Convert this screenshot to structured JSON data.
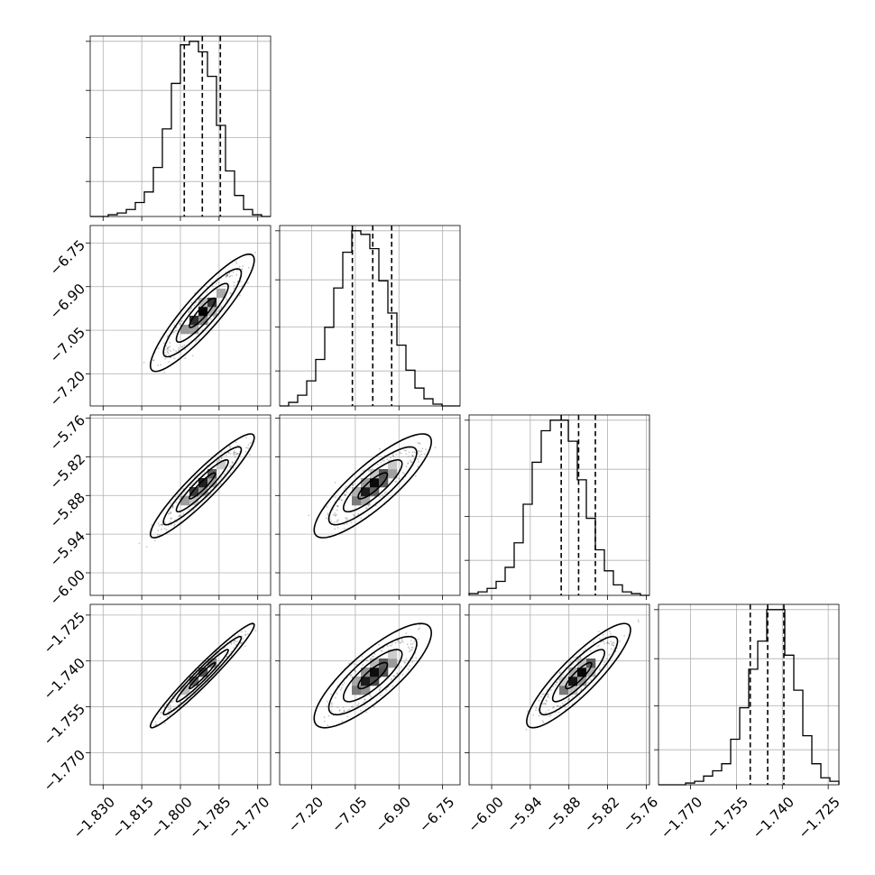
{
  "chart_data": {
    "type": "corner",
    "grid": true,
    "colors": {
      "line": "#000000",
      "density": "#000000",
      "background": "#ffffff",
      "grid": "#b0b0b0"
    },
    "parameters": [
      {
        "id": "p0",
        "range": [
          -1.835,
          -1.765
        ],
        "ticks": [
          -1.83,
          -1.815,
          -1.8,
          -1.785,
          -1.77
        ],
        "tick_labels": [
          "−1.830",
          "−1.815",
          "−1.800",
          "−1.785",
          "−1.770"
        ],
        "mean": -1.7915,
        "sd": 0.0065,
        "quantiles": [
          -1.7985,
          -1.7915,
          -1.7845
        ]
      },
      {
        "id": "p1",
        "range": [
          -7.31,
          -6.69
        ],
        "ticks": [
          -7.2,
          -7.05,
          -6.9,
          -6.75
        ],
        "tick_labels": [
          "−7.20",
          "−7.05",
          "−6.90",
          "−6.75"
        ],
        "mean": -6.99,
        "sd": 0.065,
        "quantiles": [
          -7.06,
          -6.99,
          -6.925
        ]
      },
      {
        "id": "p2",
        "range": [
          -6.035,
          -5.755
        ],
        "ticks": [
          -6.0,
          -5.94,
          -5.88,
          -5.82,
          -5.76
        ],
        "tick_labels": [
          "−6.00",
          "−5.94",
          "−5.88",
          "−5.82",
          "−5.76"
        ],
        "mean": -5.865,
        "sd": 0.026,
        "quantiles": [
          -5.892,
          -5.865,
          -5.839
        ]
      },
      {
        "id": "p3",
        "range": [
          -1.7805,
          -1.7215
        ],
        "ticks": [
          -1.77,
          -1.755,
          -1.74,
          -1.725
        ],
        "tick_labels": [
          "−1.770",
          "−1.755",
          "−1.740",
          "−1.725"
        ],
        "mean": -1.7448,
        "sd": 0.0055,
        "quantiles": [
          -1.7505,
          -1.7448,
          -1.7395
        ]
      }
    ],
    "correlations": [
      [
        1.0,
        0.9,
        0.93,
        0.97
      ],
      [
        0.9,
        1.0,
        0.85,
        0.82
      ],
      [
        0.93,
        0.85,
        1.0,
        0.88
      ],
      [
        0.97,
        0.82,
        0.88,
        1.0
      ]
    ],
    "histograms": [
      {
        "param": "p0",
        "bins_left": -1.835,
        "bin_width": 0.0035,
        "counts": [
          0,
          0,
          1,
          2,
          4,
          8,
          14,
          28,
          50,
          76,
          98,
          100,
          94,
          80,
          52,
          26,
          12,
          4,
          1,
          0
        ]
      },
      {
        "param": "p1",
        "bins_left": -7.31,
        "bin_width": 0.031,
        "counts": [
          0,
          2,
          6,
          14,
          26,
          44,
          66,
          86,
          98,
          96,
          88,
          70,
          52,
          34,
          20,
          10,
          4,
          1,
          0,
          0
        ]
      },
      {
        "param": "p2",
        "bins_left": -6.035,
        "bin_width": 0.014,
        "counts": [
          1,
          2,
          4,
          8,
          16,
          30,
          52,
          76,
          94,
          100,
          100,
          88,
          66,
          44,
          26,
          14,
          6,
          2,
          1,
          0
        ]
      },
      {
        "param": "p3",
        "bins_left": -1.7805,
        "bin_width": 0.00295,
        "counts": [
          0,
          0,
          0,
          1,
          2,
          5,
          8,
          12,
          26,
          44,
          66,
          82,
          100,
          100,
          74,
          54,
          28,
          12,
          4,
          2
        ]
      }
    ],
    "contour_levels_sigma": [
      0.5,
      1.0,
      1.5,
      2.0
    ],
    "histogram_quantiles": [
      0.16,
      0.5,
      0.84
    ]
  }
}
